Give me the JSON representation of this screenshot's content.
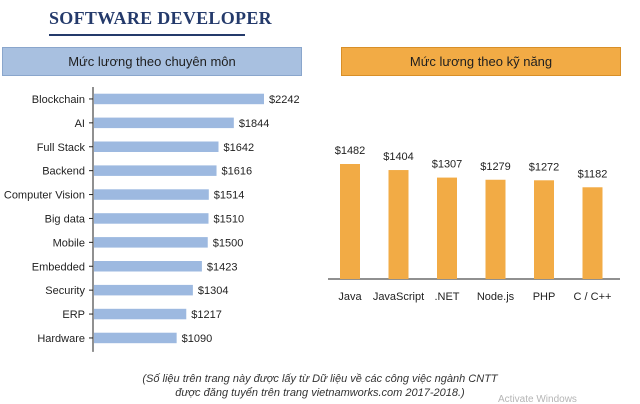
{
  "page": {
    "title": "SOFTWARE DEVELOPER",
    "footnote_line1": "(Số liệu trên trang này được lấy từ Dữ liệu về các công việc ngành CNTT",
    "footnote_line2": "được đăng tuyển trên trang vietnamworks.com 2017-2018.)",
    "watermark": "Activate Windows"
  },
  "colors": {
    "title": "#243a6b",
    "left_header": "#a8c0e0",
    "left_bar": "#9db9e0",
    "right_header": "#f2ab45",
    "right_bar": "#f2ab45",
    "axis": "#222222"
  },
  "chart_data": [
    {
      "type": "bar",
      "orientation": "horizontal",
      "title": "Mức lương theo chuyên môn",
      "categories": [
        "Blockchain",
        "AI",
        "Full Stack",
        "Backend",
        "Computer Vision",
        "Big data",
        "Mobile",
        "Embedded",
        "Security",
        "ERP",
        "Hardware"
      ],
      "values": [
        2242,
        1844,
        1642,
        1616,
        1514,
        1510,
        1500,
        1423,
        1304,
        1217,
        1090
      ],
      "value_labels": [
        "$2242",
        "$1844",
        "$1642",
        "$1616",
        "$1514",
        "$1510",
        "$1500",
        "$1423",
        "$1304",
        "$1217",
        "$1090"
      ],
      "xlim": [
        0,
        2242
      ],
      "grid": false,
      "legend": "none"
    },
    {
      "type": "bar",
      "orientation": "vertical",
      "title": "Mức lương theo kỹ năng",
      "categories": [
        "Java",
        "JavaScript",
        ".NET",
        "Node.js",
        "PHP",
        "C / C++"
      ],
      "values": [
        1482,
        1404,
        1307,
        1279,
        1272,
        1182
      ],
      "value_labels": [
        "$1482",
        "$1404",
        "$1307",
        "$1279",
        "$1272",
        "$1182"
      ],
      "ylim": [
        0,
        1482
      ],
      "grid": false,
      "legend": "none"
    }
  ]
}
